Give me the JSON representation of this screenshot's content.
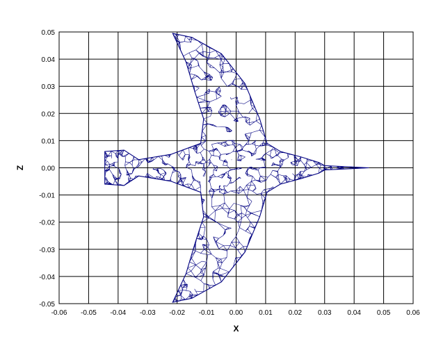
{
  "chart_data": {
    "type": "scatter",
    "subtype": "wireframe-mesh",
    "title": "",
    "xlabel": "X",
    "ylabel": "Z",
    "xlim": [
      -0.06,
      0.06
    ],
    "ylim": [
      -0.05,
      0.05
    ],
    "x_ticks": [
      "-0.06",
      "-0.05",
      "-0.04",
      "-0.03",
      "-0.02",
      "-0.01",
      "0.00",
      "0.01",
      "0.02",
      "0.03",
      "0.04",
      "0.05",
      "0.06"
    ],
    "y_ticks": [
      "0.05",
      "0.04",
      "0.03",
      "0.02",
      "0.01",
      "0.00",
      "-0.01",
      "-0.02",
      "-0.03",
      "-0.04",
      "-0.05"
    ],
    "grid": true,
    "legend": "none",
    "series": [
      {
        "color": "#000080",
        "outline": [
          [
            0.045,
            0.0
          ],
          [
            0.03,
            0.0008
          ],
          [
            0.028,
            0.002
          ],
          [
            0.022,
            0.004
          ],
          [
            0.015,
            0.006
          ],
          [
            0.0105,
            0.009
          ],
          [
            0.008,
            0.018
          ],
          [
            0.003,
            0.031
          ],
          [
            -0.005,
            0.042
          ],
          [
            -0.015,
            0.048
          ],
          [
            -0.0215,
            0.0495
          ],
          [
            -0.017,
            0.039
          ],
          [
            -0.014,
            0.028
          ],
          [
            -0.011,
            0.018
          ],
          [
            -0.012,
            0.009
          ],
          [
            -0.022,
            0.005
          ],
          [
            -0.033,
            0.003
          ],
          [
            -0.038,
            0.0065
          ],
          [
            -0.0445,
            0.006
          ],
          [
            -0.0445,
            -0.006
          ],
          [
            -0.038,
            -0.0065
          ],
          [
            -0.033,
            -0.003
          ],
          [
            -0.022,
            -0.005
          ],
          [
            -0.012,
            -0.009
          ],
          [
            -0.011,
            -0.018
          ],
          [
            -0.014,
            -0.028
          ],
          [
            -0.017,
            -0.039
          ],
          [
            -0.0215,
            -0.0495
          ],
          [
            -0.015,
            -0.048
          ],
          [
            -0.005,
            -0.042
          ],
          [
            0.003,
            -0.031
          ],
          [
            0.008,
            -0.018
          ],
          [
            0.0105,
            -0.009
          ],
          [
            0.015,
            -0.006
          ],
          [
            0.022,
            -0.004
          ],
          [
            0.028,
            -0.002
          ],
          [
            0.03,
            -0.0008
          ],
          [
            0.045,
            0.0
          ]
        ]
      }
    ]
  }
}
